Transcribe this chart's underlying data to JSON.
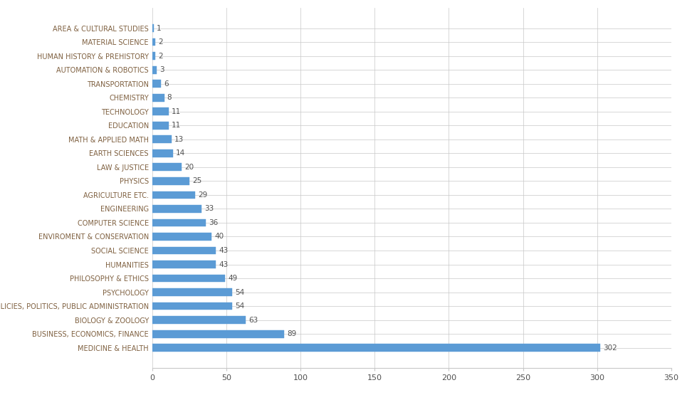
{
  "categories": [
    "AREA & CULTURAL STUDIES",
    "MATERIAL SCIENCE",
    "HUMAN HISTORY & PREHISTORY",
    "AUTOMATION & ROBOTICS",
    "TRANSPORTATION",
    "CHEMISTRY",
    "TECHNOLOGY",
    "EDUCATION",
    "MATH & APPLIED MATH",
    "EARTH SCIENCES",
    "LAW & JUSTICE",
    "PHYSICS",
    "AGRICULTURE ETC.",
    "ENGINEERING",
    "COMPUTER SCIENCE",
    "ENVIROMENT & CONSERVATION",
    "SOCIAL SCIENCE",
    "HUMANITIES",
    "PHILOSOPHY & ETHICS",
    "PSYCHOLOGY",
    "POLICIES, POLITICS, PUBLIC ADMINISTRATION",
    "BIOLOGY & ZOOLOGY",
    "BUSINESS, ECONOMICS, FINANCE",
    "MEDICINE & HEALTH"
  ],
  "values": [
    1,
    2,
    2,
    3,
    6,
    8,
    11,
    11,
    13,
    14,
    20,
    25,
    29,
    33,
    36,
    40,
    43,
    43,
    49,
    54,
    54,
    63,
    89,
    302
  ],
  "bar_color": "#5B9BD5",
  "hatch_pattern": "///",
  "hatch_color": "#AECCE8",
  "xlim": [
    0,
    350
  ],
  "xticks": [
    0,
    50,
    100,
    150,
    200,
    250,
    300,
    350
  ],
  "label_fontsize": 7.0,
  "tick_fontsize": 8,
  "value_fontsize": 7.5,
  "label_color": "#7F6040",
  "background_color": "#FFFFFF",
  "grid_color": "#C8C8C8",
  "figsize": [
    9.72,
    5.62
  ],
  "dpi": 100
}
